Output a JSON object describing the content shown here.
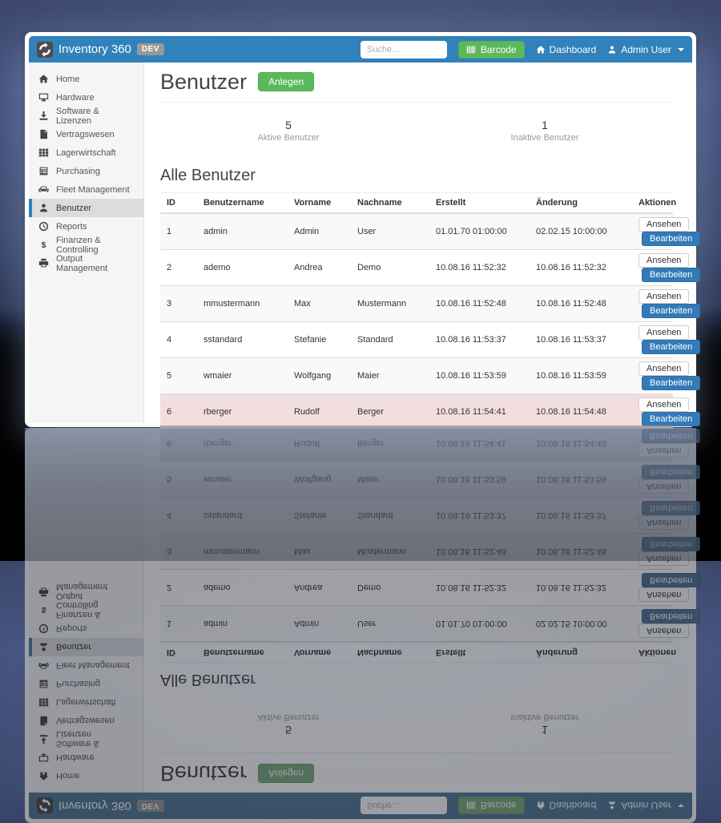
{
  "navbar": {
    "brand": "Inventory 360",
    "env_badge": "DEV",
    "search_placeholder": "Suche...",
    "barcode_label": "Barcode",
    "dashboard_label": "Dashboard",
    "user_label": "Admin User"
  },
  "sidebar": {
    "items": [
      {
        "label": "Home",
        "icon": "home-icon",
        "active": false
      },
      {
        "label": "Hardware",
        "icon": "hardware-icon",
        "active": false
      },
      {
        "label": "Software & Lizenzen",
        "icon": "download-icon",
        "active": false
      },
      {
        "label": "Vertragswesen",
        "icon": "file-icon",
        "active": false
      },
      {
        "label": "Lagerwirtschaft",
        "icon": "grid-icon",
        "active": false
      },
      {
        "label": "Purchasing",
        "icon": "list-icon",
        "active": false
      },
      {
        "label": "Fleet Management",
        "icon": "car-icon",
        "active": false
      },
      {
        "label": "Benutzer",
        "icon": "user-icon",
        "active": true
      },
      {
        "label": "Reports",
        "icon": "clock-icon",
        "active": false
      },
      {
        "label": "Finanzen & Controlling",
        "icon": "dollar-icon",
        "active": false
      },
      {
        "label": "Output Management",
        "icon": "printer-icon",
        "active": false
      }
    ]
  },
  "main": {
    "title": "Benutzer",
    "create_label": "Anlegen",
    "stats": [
      {
        "value": "5",
        "label": "Aktive Benutzer"
      },
      {
        "value": "1",
        "label": "Inaktive Benutzer"
      }
    ],
    "section_title": "Alle Benutzer",
    "table": {
      "columns": [
        "ID",
        "Benutzername",
        "Vorname",
        "Nachname",
        "Erstellt",
        "Änderung",
        "Aktionen"
      ],
      "view_label": "Ansehen",
      "edit_label": "Bearbeiten",
      "rows": [
        {
          "id": "1",
          "username": "admin",
          "first": "Admin",
          "last": "User",
          "created": "01.01.70 01:00:00",
          "changed": "02.02.15 10:00:00",
          "state": "default"
        },
        {
          "id": "2",
          "username": "ademo",
          "first": "Andrea",
          "last": "Demo",
          "created": "10.08.16 11:52:32",
          "changed": "10.08.16 11:52:32",
          "state": "default"
        },
        {
          "id": "3",
          "username": "mmustermann",
          "first": "Max",
          "last": "Mustermann",
          "created": "10.08.16 11:52:48",
          "changed": "10.08.16 11:52:48",
          "state": "default"
        },
        {
          "id": "4",
          "username": "sstandard",
          "first": "Stefanie",
          "last": "Standard",
          "created": "10.08.16 11:53:37",
          "changed": "10.08.16 11:53:37",
          "state": "default"
        },
        {
          "id": "5",
          "username": "wmaier",
          "first": "Wolfgang",
          "last": "Maier",
          "created": "10.08.16 11:53:59",
          "changed": "10.08.16 11:53:59",
          "state": "default"
        },
        {
          "id": "6",
          "username": "rberger",
          "first": "Rudolf",
          "last": "Berger",
          "created": "10.08.16 11:54:41",
          "changed": "10.08.16 11:54:48",
          "state": "danger"
        }
      ]
    }
  },
  "colors": {
    "navbar_blue": "#3181bb",
    "primary_button_blue": "#337ab7",
    "success_green": "#5cb85c",
    "danger_row_pink": "#f2dede",
    "sidebar_gray": "#f5f5f5",
    "active_item_gray": "#dcdcdc",
    "active_item_accent": "#2e81c0"
  }
}
